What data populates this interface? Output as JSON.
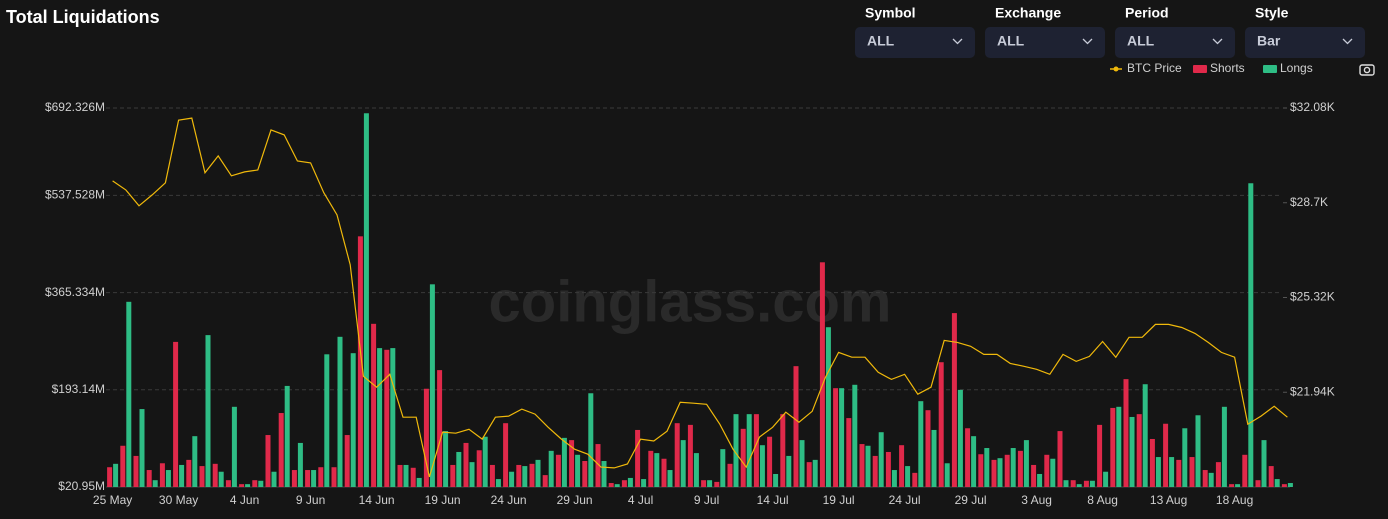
{
  "header": {
    "title": "Total Liquidations"
  },
  "filters": [
    {
      "label": "Symbol",
      "value": "ALL"
    },
    {
      "label": "Exchange",
      "value": "ALL"
    },
    {
      "label": "Period",
      "value": "ALL"
    },
    {
      "label": "Style",
      "value": "Bar"
    }
  ],
  "watermark": "coinglass.com",
  "chart_data": {
    "type": "bar",
    "categories": [
      "25 May",
      null,
      null,
      null,
      null,
      "30 May",
      null,
      null,
      null,
      null,
      "4 Jun",
      null,
      null,
      null,
      null,
      "9 Jun",
      null,
      null,
      null,
      null,
      "14 Jun",
      null,
      null,
      null,
      null,
      "19 Jun",
      null,
      null,
      null,
      null,
      "24 Jun",
      null,
      null,
      null,
      null,
      "29 Jun",
      null,
      null,
      null,
      null,
      "4 Jul",
      null,
      null,
      null,
      null,
      "9 Jul",
      null,
      null,
      null,
      null,
      "14 Jul",
      null,
      null,
      null,
      null,
      "19 Jul",
      null,
      null,
      null,
      null,
      "24 Jul",
      null,
      null,
      null,
      null,
      "29 Jul",
      null,
      null,
      null,
      null,
      "3 Aug",
      null,
      null,
      null,
      null,
      "8 Aug",
      null,
      null,
      null,
      null,
      "13 Aug",
      null,
      null,
      null,
      null,
      "18 Aug",
      null,
      null,
      null,
      null
    ],
    "series": [
      {
        "name": "BTC Price",
        "type": "line",
        "axis": "y2",
        "color": "#f0b90b",
        "values": [
          29.48,
          29.16,
          28.59,
          28.98,
          29.41,
          31.65,
          31.72,
          29.77,
          30.37,
          29.66,
          29.8,
          29.87,
          31.3,
          31.12,
          30.19,
          30.12,
          29.06,
          28.27,
          26.49,
          22.51,
          22.12,
          22.58,
          21.05,
          21.05,
          18.92,
          20.52,
          20.48,
          20.62,
          20.27,
          21.05,
          21.09,
          21.34,
          21.16,
          20.69,
          20.27,
          19.91,
          19.73,
          19.27,
          19.24,
          19.38,
          20.27,
          20.2,
          20.55,
          21.58,
          21.55,
          21.51,
          20.8,
          19.91,
          19.27,
          20.34,
          20.69,
          21.23,
          20.87,
          21.26,
          22.47,
          23.36,
          23.19,
          23.19,
          22.65,
          22.4,
          22.58,
          21.87,
          22.12,
          23.79,
          23.72,
          23.58,
          23.29,
          23.29,
          22.97,
          22.87,
          22.76,
          22.58,
          23.29,
          23.04,
          23.22,
          23.75,
          23.19,
          23.9,
          23.9,
          24.36,
          24.36,
          24.25,
          24.04,
          23.72,
          23.36,
          23.19,
          20.8,
          21.09,
          21.44,
          21.05
        ]
      },
      {
        "name": "Shorts",
        "type": "bar",
        "color": "#e0294a",
        "values": [
          56,
          94,
          76,
          51,
          63,
          278,
          69,
          58,
          62,
          33,
          26,
          33,
          113,
          152,
          51,
          51,
          56,
          56,
          113,
          465,
          310,
          264,
          60,
          55,
          195,
          228,
          60,
          99,
          86,
          60,
          134,
          60,
          62,
          42,
          78,
          104,
          67,
          97,
          28,
          33,
          122,
          85,
          71,
          134,
          131,
          33,
          30,
          62,
          124,
          150,
          110,
          150,
          235,
          65,
          419,
          196,
          143,
          97,
          76,
          83,
          95,
          46,
          157,
          242,
          329,
          125,
          79,
          69,
          78,
          85,
          60,
          78,
          120,
          33,
          32,
          131,
          161,
          212,
          150,
          106,
          133,
          69,
          74,
          51,
          65,
          26,
          78,
          33,
          58,
          26
        ]
      },
      {
        "name": "Longs",
        "type": "bar",
        "color": "#2ebd85",
        "values": [
          62,
          349,
          159,
          33,
          51,
          60,
          111,
          290,
          48,
          163,
          26,
          32,
          48,
          200,
          99,
          51,
          256,
          287,
          258,
          683,
          267,
          267,
          60,
          37,
          380,
          120,
          83,
          65,
          110,
          35,
          48,
          58,
          69,
          85,
          108,
          78,
          187,
          67,
          26,
          37,
          35,
          81,
          51,
          104,
          81,
          33,
          88,
          150,
          150,
          95,
          44,
          76,
          104,
          69,
          304,
          196,
          202,
          94,
          118,
          51,
          58,
          173,
          122,
          63,
          193,
          111,
          90,
          72,
          90,
          104,
          44,
          71,
          33,
          26,
          32,
          48,
          163,
          145,
          203,
          74,
          74,
          125,
          148,
          46,
          163,
          26,
          559,
          104,
          35,
          28
        ]
      }
    ],
    "ylim": [
      20.95,
      692.326
    ],
    "yticks": [
      {
        "value": 20.95,
        "label": "$20.95M"
      },
      {
        "value": 193.14,
        "label": "$193.14M"
      },
      {
        "value": 365.334,
        "label": "$365.334M"
      },
      {
        "value": 537.528,
        "label": "$537.528M"
      },
      {
        "value": 692.326,
        "label": "$692.326M"
      }
    ],
    "y2lim": [
      18.56,
      32.08
    ],
    "y2ticks": [
      {
        "value": 21.94,
        "label": "$21.94K"
      },
      {
        "value": 25.32,
        "label": "$25.32K"
      },
      {
        "value": 28.7,
        "label": "$28.7K"
      },
      {
        "value": 32.08,
        "label": "$32.08K"
      }
    ],
    "grid": true
  }
}
